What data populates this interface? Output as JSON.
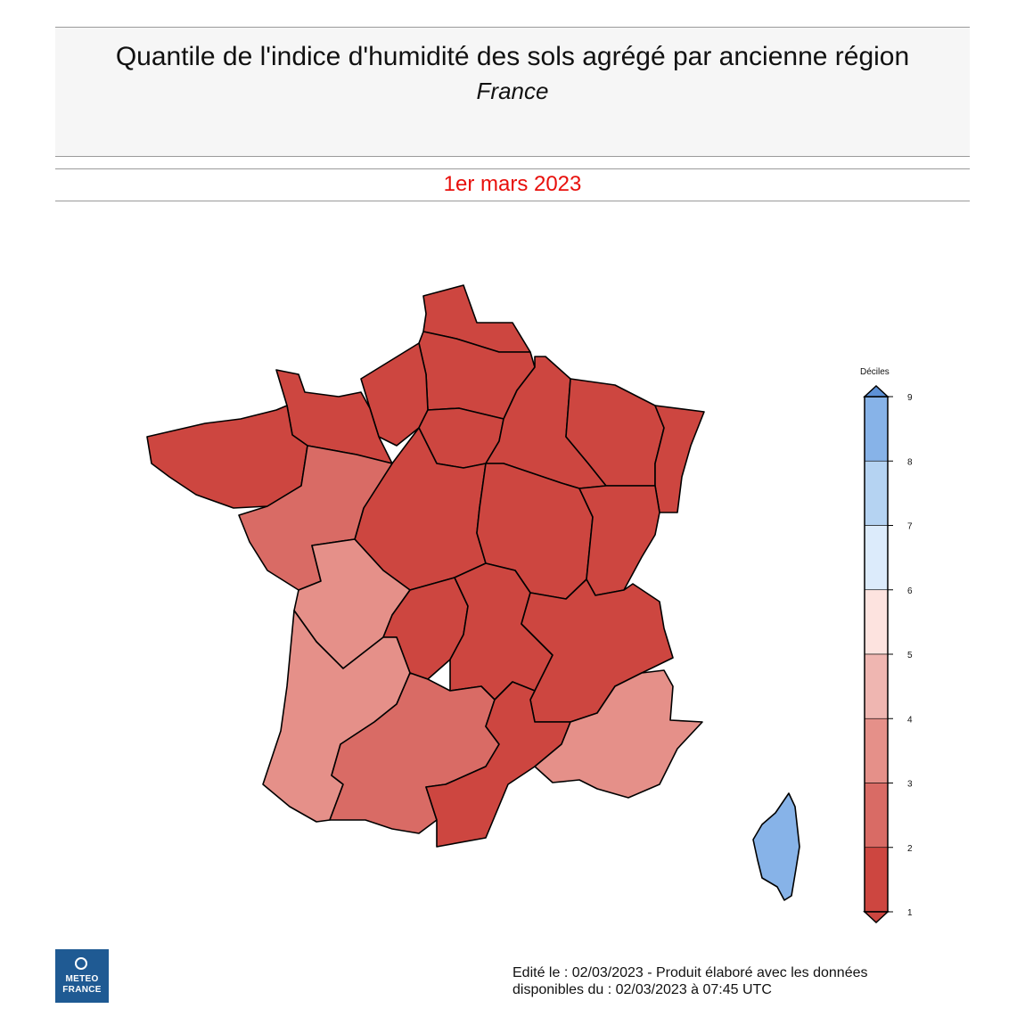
{
  "header": {
    "title": "Quantile de l'indice d'humidité des sols agrégé par ancienne région",
    "subtitle": "France",
    "date": "1er mars 2023"
  },
  "colors": {
    "decile_1": "#cd4640",
    "decile_2": "#d96b65",
    "decile_3": "#e59089",
    "decile_4": "#efb6b1",
    "decile_5": "#fde3df",
    "decile_6": "#dcebfb",
    "decile_7": "#b5d3f2",
    "decile_8": "#87b3e8",
    "decile_9": "#5d91d6",
    "border": "#000000"
  },
  "legend": {
    "title": "Déciles",
    "ticks": [
      "9",
      "8",
      "7",
      "6",
      "5",
      "4",
      "3",
      "2",
      "1"
    ]
  },
  "regions": [
    {
      "name": "Nord-Pas-de-Calais",
      "decile": 1
    },
    {
      "name": "Picardie",
      "decile": 1
    },
    {
      "name": "Haute-Normandie",
      "decile": 1
    },
    {
      "name": "Basse-Normandie",
      "decile": 1
    },
    {
      "name": "Bretagne",
      "decile": 1
    },
    {
      "name": "Île-de-France",
      "decile": 1
    },
    {
      "name": "Champagne-Ardenne",
      "decile": 1
    },
    {
      "name": "Lorraine",
      "decile": 1
    },
    {
      "name": "Alsace",
      "decile": 1
    },
    {
      "name": "Centre",
      "decile": 1
    },
    {
      "name": "Bourgogne",
      "decile": 1
    },
    {
      "name": "Franche-Comté",
      "decile": 1
    },
    {
      "name": "Limousin",
      "decile": 1
    },
    {
      "name": "Auvergne",
      "decile": 1
    },
    {
      "name": "Rhône-Alpes",
      "decile": 1
    },
    {
      "name": "Languedoc-Roussillon",
      "decile": 1
    },
    {
      "name": "Pays de la Loire",
      "decile": 2
    },
    {
      "name": "Midi-Pyrénées",
      "decile": 2
    },
    {
      "name": "Poitou-Charentes",
      "decile": 3
    },
    {
      "name": "Aquitaine",
      "decile": 3
    },
    {
      "name": "Provence-Alpes-Côte d'Azur",
      "decile": 3
    },
    {
      "name": "Corse",
      "decile": 8
    }
  ],
  "logo": {
    "line1": "METEO",
    "line2": "FRANCE"
  },
  "footer": {
    "line1": "Edité le : 02/03/2023 - Produit élaboré avec les données",
    "line2": "disponibles du : 02/03/2023 à 07:45 UTC"
  }
}
